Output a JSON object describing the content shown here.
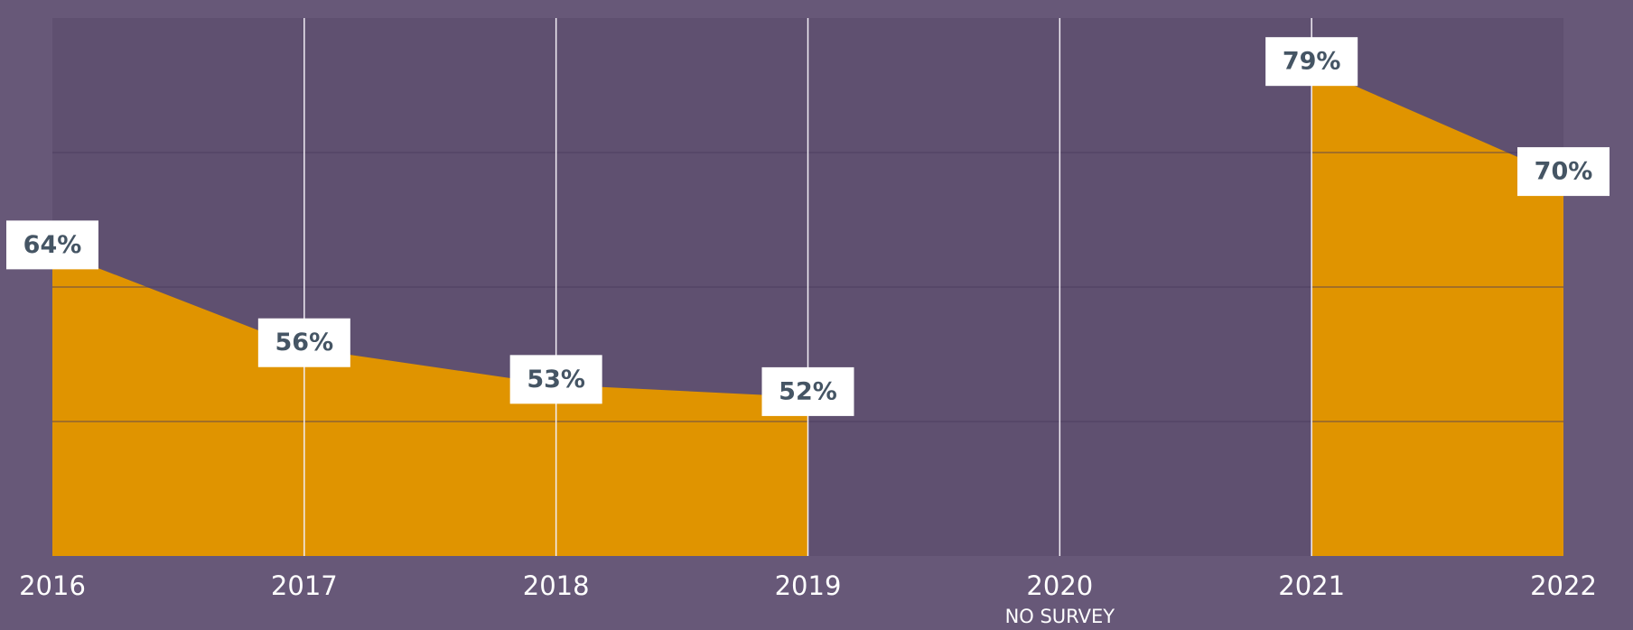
{
  "chart_data": {
    "type": "area",
    "categories": [
      "2016",
      "2017",
      "2018",
      "2019",
      "2020",
      "2021",
      "2022"
    ],
    "x_sublabels": [
      null,
      null,
      null,
      null,
      "NO SURVEY",
      null,
      null
    ],
    "values": [
      64,
      56,
      53,
      52,
      null,
      79,
      70
    ],
    "value_labels": [
      "64%",
      "56%",
      "53%",
      "52%",
      null,
      "79%",
      "70%"
    ],
    "color": "#e09400",
    "ylim": [
      39,
      83
    ],
    "yticks": [
      50,
      61,
      72
    ],
    "grid": true
  }
}
